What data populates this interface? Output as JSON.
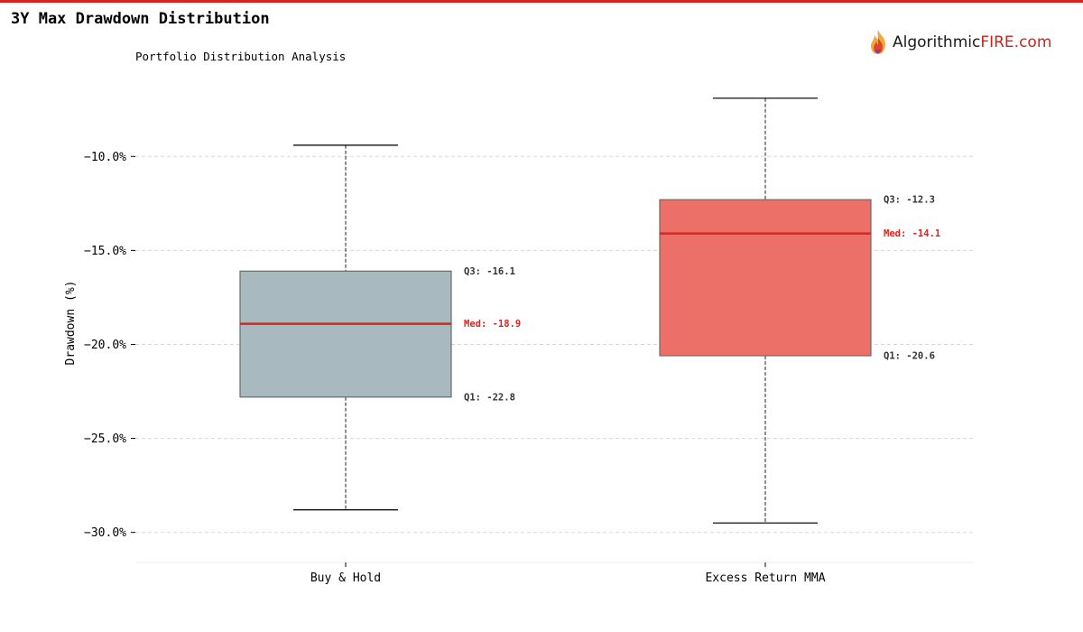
{
  "header": {
    "title": "3Y Max Drawdown Distribution",
    "subtitle": "Portfolio Distribution Analysis"
  },
  "logo": {
    "text_main": "Algorithmic",
    "text_accent": "FIRE.com",
    "icon": "flame-icon"
  },
  "colors": {
    "accent_red": "#d9231d",
    "buy_hold_box": "#a9b9c0",
    "mma_box": "#ec7068",
    "median_line": "#e0231c",
    "gridline": "#d8d8d8"
  },
  "chart_data": {
    "type": "box",
    "ylabel": "Drawdown (%)",
    "ylim": [
      -31.6,
      -6.0
    ],
    "yticks": [
      -10.0,
      -15.0,
      -20.0,
      -25.0,
      -30.0
    ],
    "ytick_labels": [
      "−10.0%",
      "−15.0%",
      "−20.0%",
      "−25.0%",
      "−30.0%"
    ],
    "grid": true,
    "categories": [
      "Buy & Hold",
      "Excess Return MMA"
    ],
    "boxes": [
      {
        "name": "Buy & Hold",
        "min": -28.8,
        "q1": -22.8,
        "median": -18.9,
        "q3": -16.1,
        "max": -9.4,
        "q3_label": "Q3: -16.1",
        "median_label": "Med: -18.9",
        "q1_label": "Q1: -22.8"
      },
      {
        "name": "Excess Return MMA",
        "min": -29.5,
        "q1": -20.6,
        "median": -14.1,
        "q3": -12.3,
        "max": -6.9,
        "q3_label": "Q3: -12.3",
        "median_label": "Med: -14.1",
        "q1_label": "Q1: -20.6"
      }
    ]
  }
}
